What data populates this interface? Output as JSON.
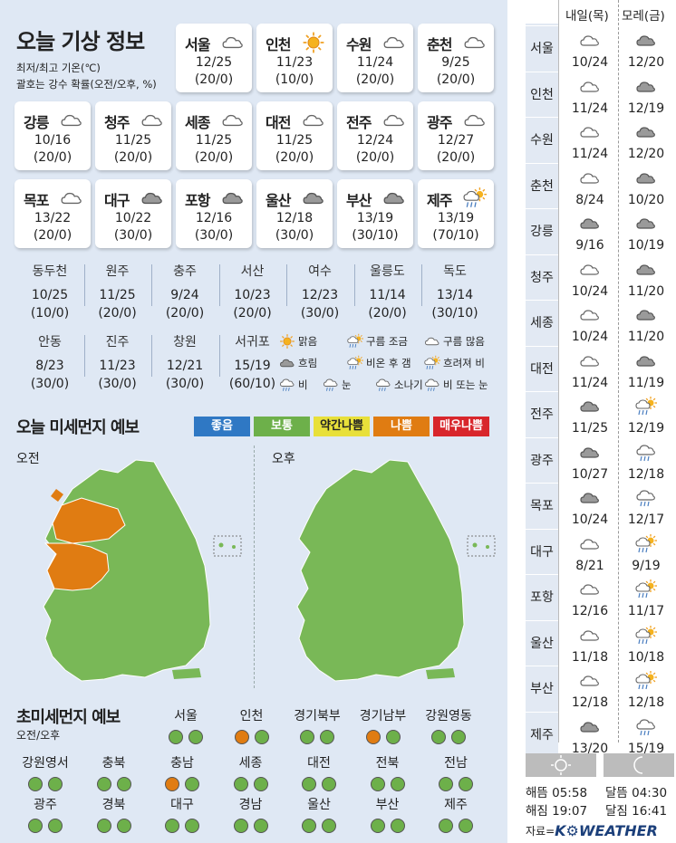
{
  "title": "오늘 기상 정보",
  "subtitle": [
    "최저/최고 기온(℃)",
    "괄호는 강수 확률(오전/오후, %)"
  ],
  "cities": [
    {
      "name": "서울",
      "icon": "cloud-icon",
      "temp": "12/25",
      "rain": "(20/0)"
    },
    {
      "name": "인천",
      "icon": "sun-icon",
      "temp": "11/23",
      "rain": "(10/0)"
    },
    {
      "name": "수원",
      "icon": "cloud-icon",
      "temp": "11/24",
      "rain": "(20/0)"
    },
    {
      "name": "춘천",
      "icon": "cloud-icon",
      "temp": "9/25",
      "rain": "(20/0)"
    },
    {
      "name": "강릉",
      "icon": "cloud-icon",
      "temp": "10/16",
      "rain": "(20/0)"
    },
    {
      "name": "청주",
      "icon": "cloud-icon",
      "temp": "11/25",
      "rain": "(20/0)"
    },
    {
      "name": "세종",
      "icon": "cloud-icon",
      "temp": "11/25",
      "rain": "(20/0)"
    },
    {
      "name": "대전",
      "icon": "cloud-icon",
      "temp": "11/25",
      "rain": "(20/0)"
    },
    {
      "name": "전주",
      "icon": "cloud-icon",
      "temp": "12/24",
      "rain": "(20/0)"
    },
    {
      "name": "광주",
      "icon": "cloud-icon",
      "temp": "12/27",
      "rain": "(20/0)"
    },
    {
      "name": "목포",
      "icon": "cloud-icon",
      "temp": "13/22",
      "rain": "(20/0)"
    },
    {
      "name": "대구",
      "icon": "dark-cloud-icon",
      "temp": "10/22",
      "rain": "(30/0)"
    },
    {
      "name": "포항",
      "icon": "dark-cloud-icon",
      "temp": "12/16",
      "rain": "(30/0)"
    },
    {
      "name": "울산",
      "icon": "dark-cloud-icon",
      "temp": "12/18",
      "rain": "(30/0)"
    },
    {
      "name": "부산",
      "icon": "dark-cloud-icon",
      "temp": "13/19",
      "rain": "(30/10)"
    },
    {
      "name": "제주",
      "icon": "rain-clearing-icon",
      "temp": "13/19",
      "rain": "(70/10)"
    }
  ],
  "minor": [
    {
      "name": "동두천",
      "temp": "10/25",
      "rain": "(10/0)"
    },
    {
      "name": "원주",
      "temp": "11/25",
      "rain": "(20/0)"
    },
    {
      "name": "충주",
      "temp": "9/24",
      "rain": "(20/0)"
    },
    {
      "name": "서산",
      "temp": "10/23",
      "rain": "(20/0)"
    },
    {
      "name": "여수",
      "temp": "12/23",
      "rain": "(30/0)"
    },
    {
      "name": "울릉도",
      "temp": "11/14",
      "rain": "(20/0)"
    },
    {
      "name": "독도",
      "temp": "13/14",
      "rain": "(30/10)"
    },
    {
      "name": "안동",
      "temp": "8/23",
      "rain": "(30/0)"
    },
    {
      "name": "진주",
      "temp": "11/23",
      "rain": "(30/0)"
    },
    {
      "name": "창원",
      "temp": "12/21",
      "rain": "(30/0)"
    },
    {
      "name": "서귀포",
      "temp": "15/19",
      "rain": "(60/10)"
    }
  ],
  "legend": [
    "맑음",
    "구름 조금",
    "구름 많음",
    "흐림",
    "비온 후 갬",
    "흐려져 비",
    "비",
    "눈",
    "소나기",
    "비 또는 눈"
  ],
  "dust_title": "오늘 미세먼지 예보",
  "pm_levels": [
    {
      "label": "좋음",
      "color": "#2f78c4"
    },
    {
      "label": "보통",
      "color": "#6db04a"
    },
    {
      "label": "약간나쁨",
      "color": "#e8e03a"
    },
    {
      "label": "나쁨",
      "color": "#e07c12"
    },
    {
      "label": "매우나쁨",
      "color": "#d8262c"
    }
  ],
  "am_label": "오전",
  "pm_label": "오후",
  "ufd_title": "초미세먼지 예보",
  "ufd_sub": "오전/오후",
  "ufd": [
    {
      "name": "서울",
      "am": "g",
      "pm": "g"
    },
    {
      "name": "인천",
      "am": "o",
      "pm": "g"
    },
    {
      "name": "경기북부",
      "am": "g",
      "pm": "g"
    },
    {
      "name": "경기남부",
      "am": "o",
      "pm": "g"
    },
    {
      "name": "강원영동",
      "am": "g",
      "pm": "g"
    },
    {
      "name": "강원영서",
      "am": "g",
      "pm": "g"
    },
    {
      "name": "충북",
      "am": "g",
      "pm": "g"
    },
    {
      "name": "충남",
      "am": "o",
      "pm": "g"
    },
    {
      "name": "세종",
      "am": "g",
      "pm": "g"
    },
    {
      "name": "대전",
      "am": "g",
      "pm": "g"
    },
    {
      "name": "전북",
      "am": "g",
      "pm": "g"
    },
    {
      "name": "전남",
      "am": "g",
      "pm": "g"
    },
    {
      "name": "광주",
      "am": "g",
      "pm": "g"
    },
    {
      "name": "경북",
      "am": "g",
      "pm": "g"
    },
    {
      "name": "대구",
      "am": "g",
      "pm": "g"
    },
    {
      "name": "경남",
      "am": "g",
      "pm": "g"
    },
    {
      "name": "울산",
      "am": "g",
      "pm": "g"
    },
    {
      "name": "부산",
      "am": "g",
      "pm": "g"
    },
    {
      "name": "제주",
      "am": "g",
      "pm": "g"
    }
  ],
  "forecast_headers": [
    "내일(목)",
    "모레(금)"
  ],
  "forecast": [
    {
      "city": "서울",
      "d1": "10/24",
      "d2": "12/20",
      "i1": "cloud-icon",
      "i2": "dark-cloud-icon"
    },
    {
      "city": "인천",
      "d1": "11/24",
      "d2": "12/19",
      "i1": "cloud-icon",
      "i2": "dark-cloud-icon"
    },
    {
      "city": "수원",
      "d1": "11/24",
      "d2": "12/20",
      "i1": "cloud-icon",
      "i2": "dark-cloud-icon"
    },
    {
      "city": "춘천",
      "d1": "8/24",
      "d2": "10/20",
      "i1": "cloud-icon",
      "i2": "dark-cloud-icon"
    },
    {
      "city": "강릉",
      "d1": "9/16",
      "d2": "10/19",
      "i1": "dark-cloud-icon",
      "i2": "dark-cloud-icon"
    },
    {
      "city": "청주",
      "d1": "10/24",
      "d2": "11/20",
      "i1": "cloud-icon",
      "i2": "dark-cloud-icon"
    },
    {
      "city": "세종",
      "d1": "10/24",
      "d2": "11/20",
      "i1": "cloud-icon",
      "i2": "dark-cloud-icon"
    },
    {
      "city": "대전",
      "d1": "11/24",
      "d2": "11/19",
      "i1": "cloud-icon",
      "i2": "dark-cloud-icon"
    },
    {
      "city": "전주",
      "d1": "11/25",
      "d2": "12/19",
      "i1": "dark-cloud-icon",
      "i2": "rain-clearing-icon"
    },
    {
      "city": "광주",
      "d1": "10/27",
      "d2": "12/18",
      "i1": "dark-cloud-icon",
      "i2": "rain-icon"
    },
    {
      "city": "목포",
      "d1": "10/24",
      "d2": "12/17",
      "i1": "dark-cloud-icon",
      "i2": "rain-icon"
    },
    {
      "city": "대구",
      "d1": "8/21",
      "d2": "9/19",
      "i1": "cloud-icon",
      "i2": "rain-clearing-icon"
    },
    {
      "city": "포항",
      "d1": "12/16",
      "d2": "11/17",
      "i1": "cloud-icon",
      "i2": "rain-clearing-icon"
    },
    {
      "city": "울산",
      "d1": "11/18",
      "d2": "10/18",
      "i1": "cloud-icon",
      "i2": "rain-clearing-icon"
    },
    {
      "city": "부산",
      "d1": "12/18",
      "d2": "12/18",
      "i1": "cloud-icon",
      "i2": "rain-clearing-icon"
    },
    {
      "city": "제주",
      "d1": "13/20",
      "d2": "15/19",
      "i1": "dark-cloud-icon",
      "i2": "rain-icon"
    }
  ],
  "sun": {
    "rise": "해뜸 05:58",
    "set": "해짐 19:07"
  },
  "moon": {
    "rise": "달뜸 04:30",
    "set": "달짐 16:41"
  },
  "source_label": "자료=",
  "source_logo": "K⚙WEATHER"
}
